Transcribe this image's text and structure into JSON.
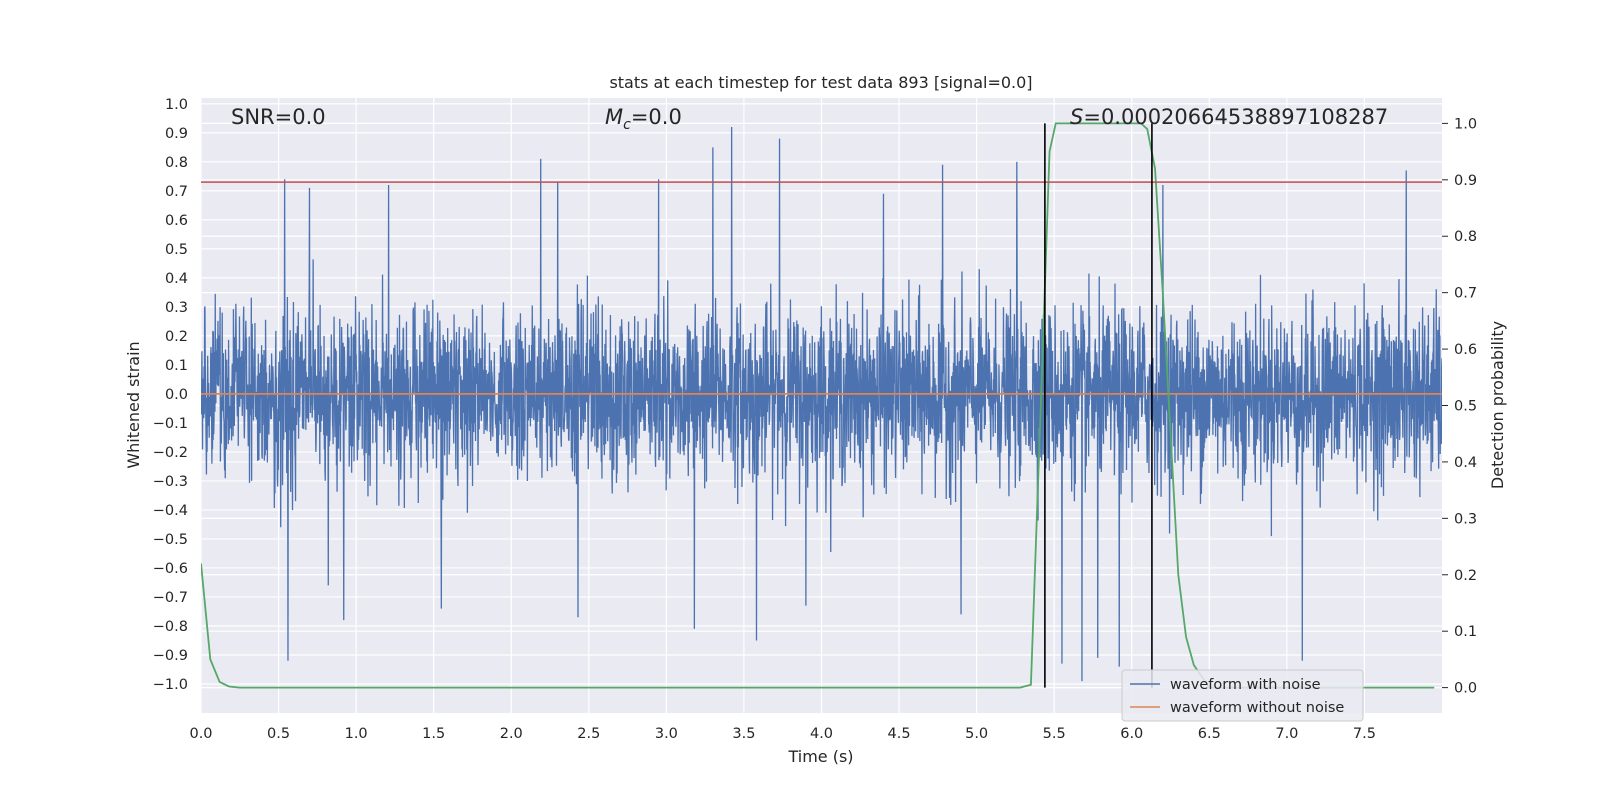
{
  "chart_data": {
    "type": "line",
    "title": "stats at each timestep for test data 893 [signal=0.0]",
    "xlabel": "Time (s)",
    "ylabel": "Whitened strain",
    "y2label": "Detection probability",
    "xlim": [
      0.0,
      8.0
    ],
    "ylim": [
      -1.1,
      1.02
    ],
    "y2lim": [
      -0.045,
      1.045
    ],
    "x_ticks": [
      "0.0",
      "0.5",
      "1.0",
      "1.5",
      "2.0",
      "2.5",
      "3.0",
      "3.5",
      "4.0",
      "4.5",
      "5.0",
      "5.5",
      "6.0",
      "6.5",
      "7.0",
      "7.5"
    ],
    "y_ticks": [
      "1.0",
      "0.9",
      "0.8",
      "0.7",
      "0.6",
      "0.5",
      "0.4",
      "0.3",
      "0.2",
      "0.1",
      "0.0",
      "−0.1",
      "−0.2",
      "−0.3",
      "−0.4",
      "−0.5",
      "−0.6",
      "−0.7",
      "−0.8",
      "−0.9",
      "−1.0"
    ],
    "y2_ticks": [
      "1.0",
      "0.9",
      "0.8",
      "0.7",
      "0.6",
      "0.5",
      "0.4",
      "0.3",
      "0.2",
      "0.1",
      "0.0"
    ],
    "annotations": {
      "snr": "SNR=0.0",
      "mc_symbol": "M",
      "mc_sub": "c",
      "mc_value": "=0.0",
      "s_symbol": "S",
      "s_value": "=0.00020664538897108287"
    },
    "noise_envelope": {
      "name": "waveform with noise",
      "color": "#4c72b0",
      "dense_band": [
        -0.45,
        0.42
      ],
      "spikes": [
        {
          "x": 0.54,
          "y": 0.74
        },
        {
          "x": 0.56,
          "y": -0.92
        },
        {
          "x": 0.7,
          "y": 0.71
        },
        {
          "x": 0.82,
          "y": -0.66
        },
        {
          "x": 0.92,
          "y": -0.78
        },
        {
          "x": 1.21,
          "y": 0.72
        },
        {
          "x": 1.55,
          "y": -0.74
        },
        {
          "x": 2.19,
          "y": 0.81
        },
        {
          "x": 2.3,
          "y": 0.73
        },
        {
          "x": 2.43,
          "y": -0.77
        },
        {
          "x": 2.95,
          "y": 0.74
        },
        {
          "x": 3.18,
          "y": -0.81
        },
        {
          "x": 3.3,
          "y": 0.85
        },
        {
          "x": 3.42,
          "y": 0.92
        },
        {
          "x": 3.58,
          "y": -0.85
        },
        {
          "x": 3.73,
          "y": 0.88
        },
        {
          "x": 3.9,
          "y": -0.73
        },
        {
          "x": 4.4,
          "y": 0.69
        },
        {
          "x": 4.78,
          "y": 0.79
        },
        {
          "x": 4.9,
          "y": -0.76
        },
        {
          "x": 5.26,
          "y": 0.8
        },
        {
          "x": 5.55,
          "y": -0.93
        },
        {
          "x": 5.68,
          "y": -0.99
        },
        {
          "x": 5.78,
          "y": -0.91
        },
        {
          "x": 5.92,
          "y": -0.94
        },
        {
          "x": 6.2,
          "y": 0.72
        },
        {
          "x": 7.1,
          "y": -0.92
        },
        {
          "x": 7.77,
          "y": 0.77
        }
      ]
    },
    "series": [
      {
        "name": "waveform without noise",
        "color": "#dd8452",
        "axis": "left",
        "x": [
          0.0,
          8.0
        ],
        "y": [
          0.0,
          0.0
        ]
      },
      {
        "name": "detection probability",
        "color": "#55a868",
        "axis": "right",
        "x": [
          0.0,
          0.06,
          0.12,
          0.18,
          0.25,
          0.35,
          1.0,
          2.0,
          3.0,
          4.0,
          5.0,
          5.28,
          5.35,
          5.42,
          5.47,
          5.51,
          5.6,
          5.8,
          6.0,
          6.06,
          6.1,
          6.15,
          6.2,
          6.25,
          6.3,
          6.35,
          6.4,
          6.5,
          7.0,
          7.5,
          7.95
        ],
        "y": [
          0.22,
          0.05,
          0.01,
          0.002,
          0.0,
          0.0,
          0.0,
          0.0,
          0.0,
          0.0,
          0.0,
          0.0,
          0.005,
          0.55,
          0.95,
          1.0,
          1.0,
          1.0,
          1.0,
          1.0,
          0.99,
          0.92,
          0.7,
          0.45,
          0.2,
          0.09,
          0.04,
          0.0,
          0.0,
          0.0,
          0.0
        ]
      }
    ],
    "hlines": [
      {
        "name": "threshold-line",
        "axis": "left",
        "y": 0.73,
        "color": "#c44e52"
      }
    ],
    "vlines": [
      {
        "name": "detection-start-line",
        "x": 5.44,
        "y2_range": [
          0.0,
          1.0
        ],
        "color": "#000000"
      },
      {
        "name": "detection-end-line",
        "x": 6.13,
        "y2_range": [
          0.0,
          1.0
        ],
        "color": "#000000"
      }
    ],
    "legend": {
      "position": "lower-right",
      "entries": [
        {
          "label": "waveform with noise",
          "color": "#4c72b0"
        },
        {
          "label": "waveform without noise",
          "color": "#dd8452"
        }
      ]
    }
  }
}
